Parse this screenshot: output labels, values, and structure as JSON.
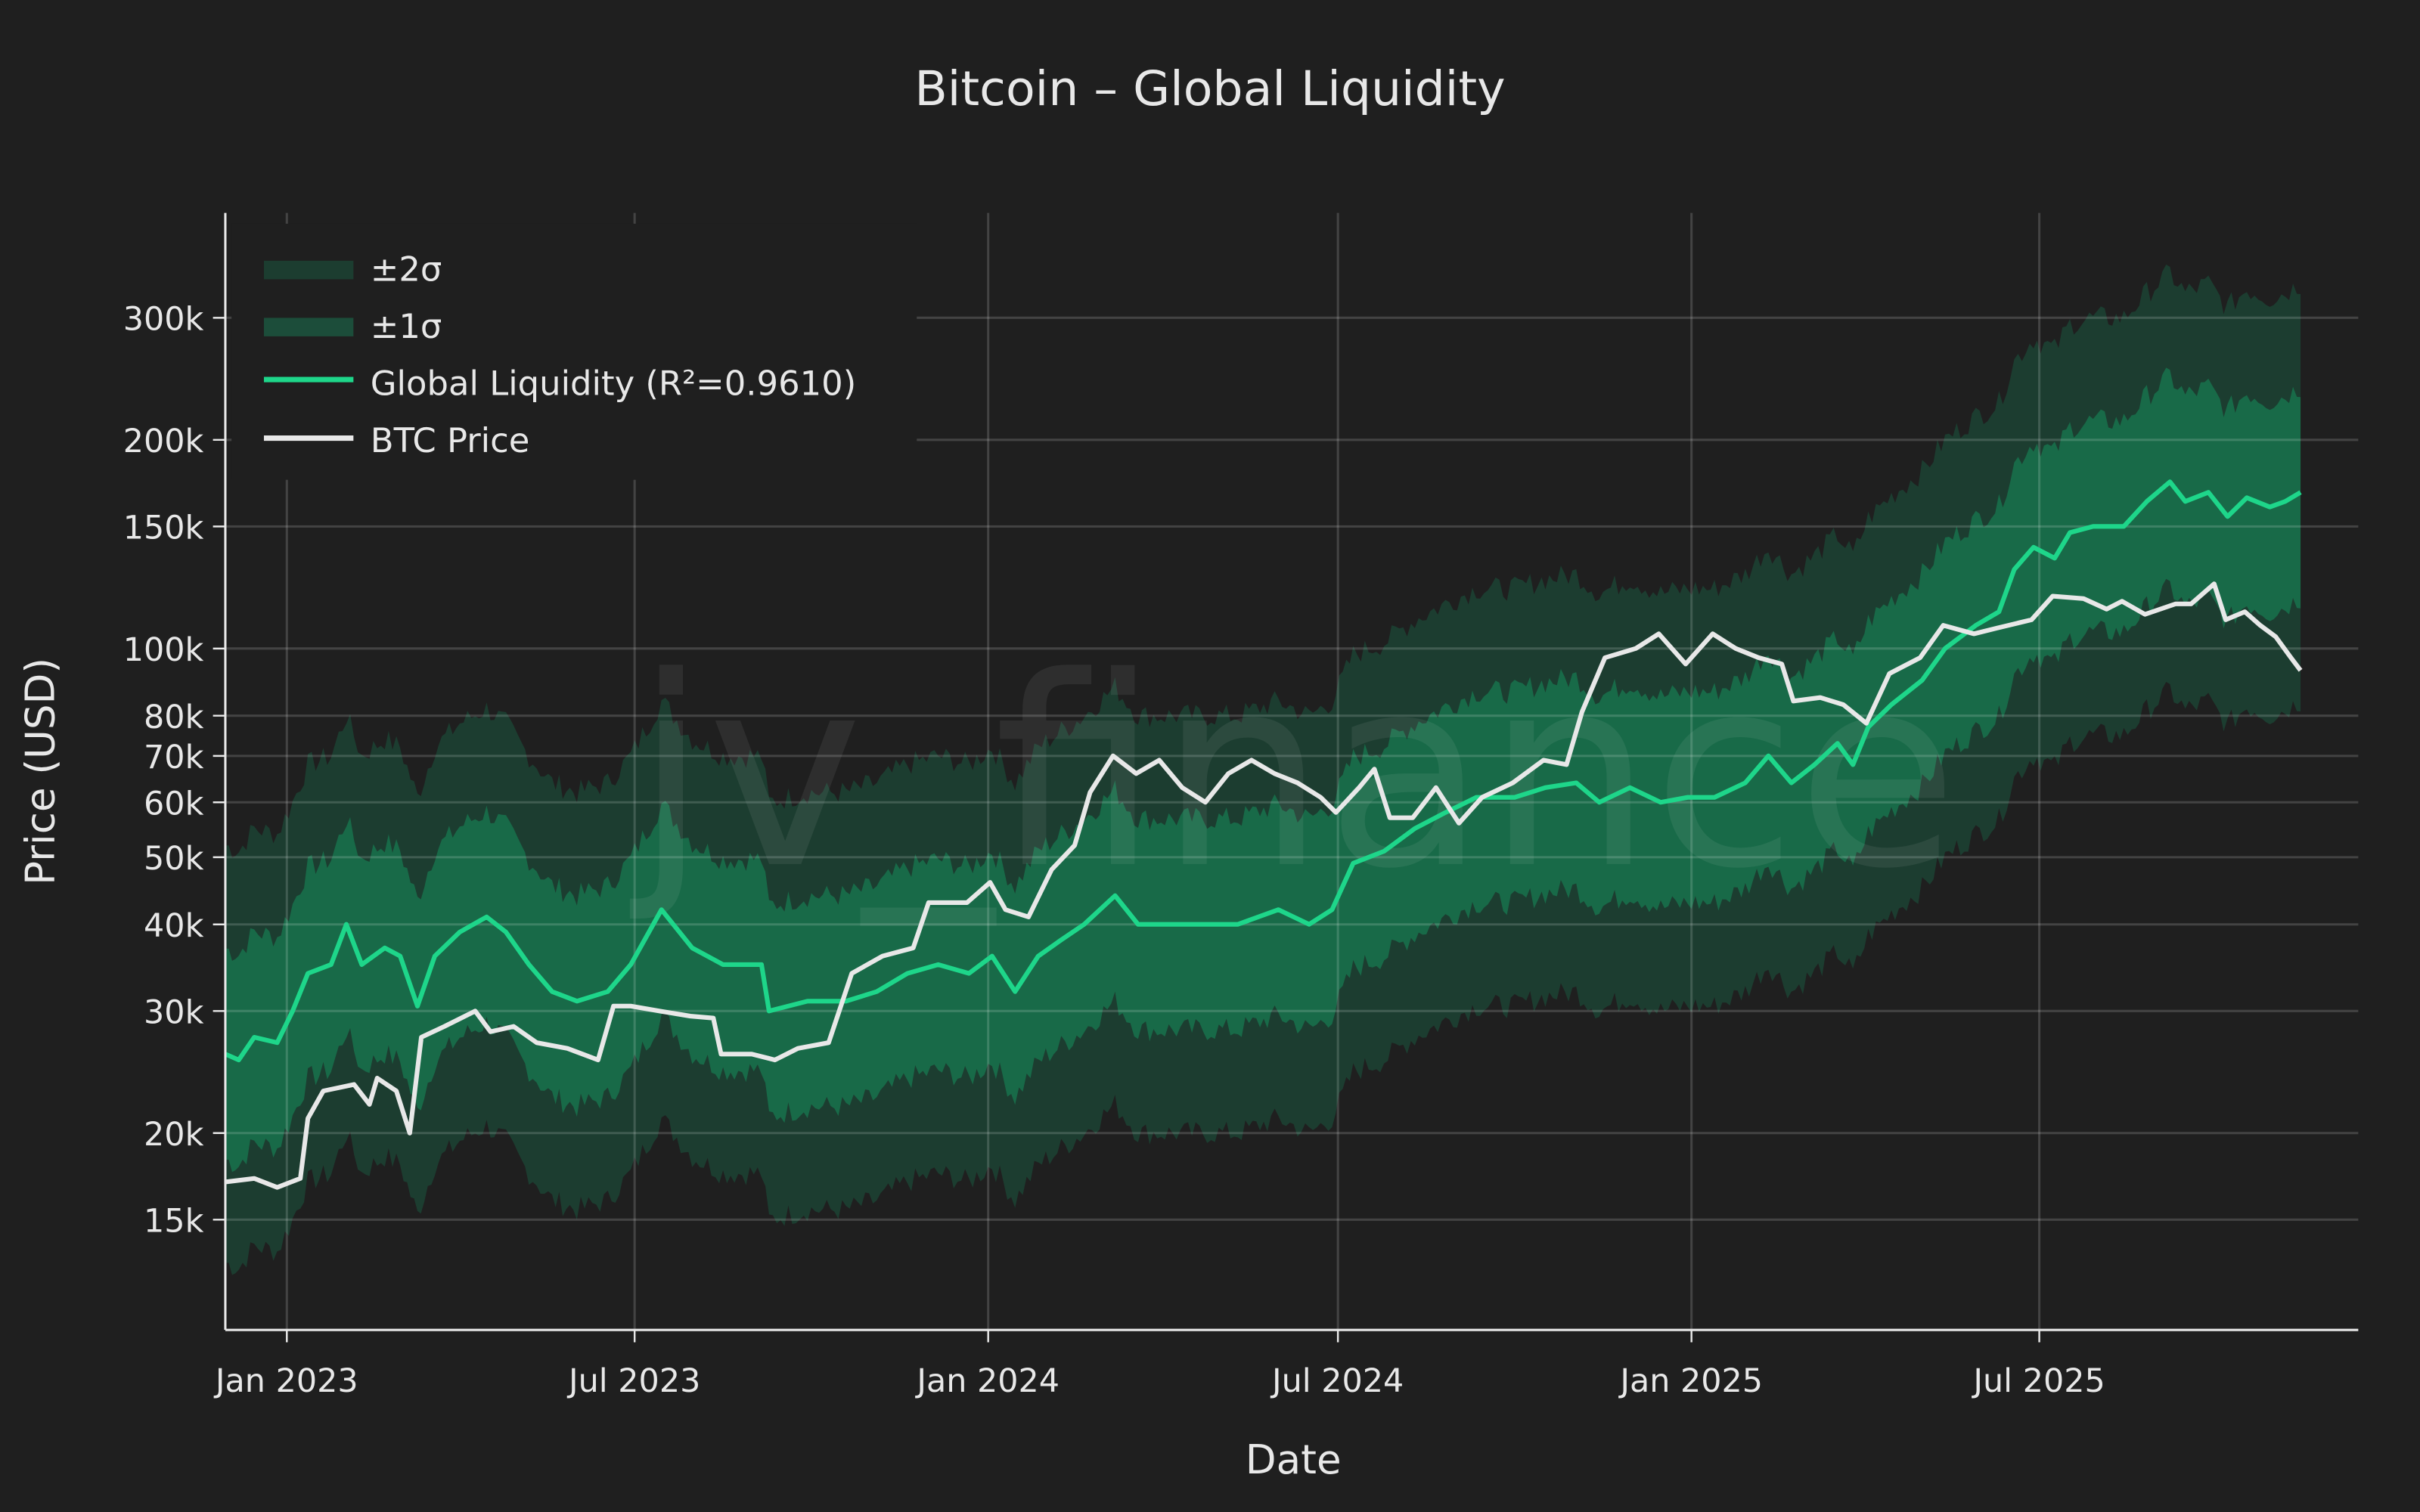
{
  "chart_data": {
    "type": "line",
    "title": "Bitcoin – Global Liquidity",
    "xlabel": "Date",
    "ylabel": "Price (USD)",
    "y_scale": "log",
    "ylim": [
      10400,
      425000
    ],
    "xlim": [
      "2022-11-30",
      "2025-12-14"
    ],
    "grid": true,
    "legend_placement": "top-left",
    "watermark": "jv_finance",
    "x_ticks": [
      {
        "date": "2023-01-01",
        "label": "Jan 2023"
      },
      {
        "date": "2023-07-01",
        "label": "Jul 2023"
      },
      {
        "date": "2024-01-01",
        "label": "Jan 2024"
      },
      {
        "date": "2024-07-01",
        "label": "Jul 2024"
      },
      {
        "date": "2025-01-01",
        "label": "Jan 2025"
      },
      {
        "date": "2025-07-01",
        "label": "Jul 2025"
      }
    ],
    "y_ticks": [
      {
        "value": 15000,
        "label": "15k"
      },
      {
        "value": 20000,
        "label": "20k"
      },
      {
        "value": 30000,
        "label": "30k"
      },
      {
        "value": 40000,
        "label": "40k"
      },
      {
        "value": 50000,
        "label": "50k"
      },
      {
        "value": 60000,
        "label": "60k"
      },
      {
        "value": 70000,
        "label": "70k"
      },
      {
        "value": 80000,
        "label": "80k"
      },
      {
        "value": 100000,
        "label": "100k"
      },
      {
        "value": 150000,
        "label": "150k"
      },
      {
        "value": 200000,
        "label": "200k"
      },
      {
        "value": 300000,
        "label": "300k"
      }
    ],
    "bands": [
      {
        "name": "±2σ",
        "multiplier": 2.0,
        "color": "#1c3d30"
      },
      {
        "name": "±1σ",
        "multiplier": 1.42,
        "color": "#186a48"
      }
    ],
    "series": [
      {
        "name": "Global Liquidity (R²=0.9610)",
        "color": "#1ed68a",
        "points": [
          [
            "2022-11-30",
            26000
          ],
          [
            "2022-12-07",
            25500
          ],
          [
            "2022-12-15",
            27500
          ],
          [
            "2022-12-27",
            27000
          ],
          [
            "2023-01-04",
            30000
          ],
          [
            "2023-01-12",
            34000
          ],
          [
            "2023-01-24",
            35000
          ],
          [
            "2023-02-01",
            40000
          ],
          [
            "2023-02-09",
            35000
          ],
          [
            "2023-02-21",
            37000
          ],
          [
            "2023-03-01",
            36000
          ],
          [
            "2023-03-10",
            30500
          ],
          [
            "2023-03-19",
            36000
          ],
          [
            "2023-04-01",
            39000
          ],
          [
            "2023-04-15",
            41000
          ],
          [
            "2023-04-25",
            39000
          ],
          [
            "2023-05-07",
            35000
          ],
          [
            "2023-05-19",
            32000
          ],
          [
            "2023-06-01",
            31000
          ],
          [
            "2023-06-17",
            32000
          ],
          [
            "2023-06-29",
            35000
          ],
          [
            "2023-07-15",
            42000
          ],
          [
            "2023-07-31",
            37000
          ],
          [
            "2023-08-16",
            35000
          ],
          [
            "2023-09-05",
            35000
          ],
          [
            "2023-09-09",
            30000
          ],
          [
            "2023-09-29",
            31000
          ],
          [
            "2023-10-19",
            31000
          ],
          [
            "2023-11-04",
            32000
          ],
          [
            "2023-11-20",
            34000
          ],
          [
            "2023-12-06",
            35000
          ],
          [
            "2023-12-22",
            34000
          ],
          [
            "2024-01-03",
            36000
          ],
          [
            "2024-01-15",
            32000
          ],
          [
            "2024-01-27",
            36000
          ],
          [
            "2024-02-08",
            38000
          ],
          [
            "2024-02-20",
            40000
          ],
          [
            "2024-03-07",
            44000
          ],
          [
            "2024-03-19",
            40000
          ],
          [
            "2024-04-04",
            40000
          ],
          [
            "2024-04-24",
            40000
          ],
          [
            "2024-05-10",
            40000
          ],
          [
            "2024-05-31",
            42000
          ],
          [
            "2024-06-16",
            40000
          ],
          [
            "2024-06-28",
            42000
          ],
          [
            "2024-07-09",
            49000
          ],
          [
            "2024-07-25",
            51000
          ],
          [
            "2024-08-10",
            55000
          ],
          [
            "2024-08-26",
            58000
          ],
          [
            "2024-09-11",
            61000
          ],
          [
            "2024-10-01",
            61000
          ],
          [
            "2024-10-17",
            63000
          ],
          [
            "2024-11-02",
            64000
          ],
          [
            "2024-11-14",
            60000
          ],
          [
            "2024-11-30",
            63000
          ],
          [
            "2024-12-16",
            60000
          ],
          [
            "2024-12-30",
            61000
          ],
          [
            "2025-01-13",
            61000
          ],
          [
            "2025-01-29",
            64000
          ],
          [
            "2025-02-10",
            70000
          ],
          [
            "2025-02-22",
            64000
          ],
          [
            "2025-03-06",
            68000
          ],
          [
            "2025-03-18",
            73000
          ],
          [
            "2025-03-26",
            68000
          ],
          [
            "2025-04-03",
            77000
          ],
          [
            "2025-04-15",
            83000
          ],
          [
            "2025-05-01",
            90000
          ],
          [
            "2025-05-13",
            100000
          ],
          [
            "2025-05-29",
            108000
          ],
          [
            "2025-06-10",
            113000
          ],
          [
            "2025-06-18",
            130000
          ],
          [
            "2025-06-28",
            140000
          ],
          [
            "2025-07-09",
            135000
          ],
          [
            "2025-07-17",
            147000
          ],
          [
            "2025-07-29",
            150000
          ],
          [
            "2025-08-14",
            150000
          ],
          [
            "2025-08-26",
            163000
          ],
          [
            "2025-09-07",
            174000
          ],
          [
            "2025-09-15",
            163000
          ],
          [
            "2025-09-27",
            168000
          ],
          [
            "2025-10-07",
            155000
          ],
          [
            "2025-10-17",
            165000
          ],
          [
            "2025-10-29",
            160000
          ],
          [
            "2025-11-06",
            163000
          ],
          [
            "2025-11-14",
            168000
          ]
        ]
      },
      {
        "name": "BTC Price",
        "color": "#e8e8e8",
        "points": [
          [
            "2022-11-30",
            17000
          ],
          [
            "2022-12-15",
            17200
          ],
          [
            "2022-12-27",
            16700
          ],
          [
            "2023-01-08",
            17200
          ],
          [
            "2023-01-12",
            21000
          ],
          [
            "2023-01-20",
            23000
          ],
          [
            "2023-02-05",
            23500
          ],
          [
            "2023-02-13",
            22000
          ],
          [
            "2023-02-17",
            24000
          ],
          [
            "2023-02-27",
            23000
          ],
          [
            "2023-03-06",
            20000
          ],
          [
            "2023-03-12",
            27500
          ],
          [
            "2023-03-24",
            28500
          ],
          [
            "2023-04-09",
            30000
          ],
          [
            "2023-04-17",
            28000
          ],
          [
            "2023-04-29",
            28500
          ],
          [
            "2023-05-11",
            27000
          ],
          [
            "2023-05-27",
            26500
          ],
          [
            "2023-06-12",
            25500
          ],
          [
            "2023-06-20",
            30500
          ],
          [
            "2023-06-29",
            30500
          ],
          [
            "2023-07-14",
            30000
          ],
          [
            "2023-07-30",
            29500
          ],
          [
            "2023-08-11",
            29300
          ],
          [
            "2023-08-15",
            26000
          ],
          [
            "2023-08-31",
            26000
          ],
          [
            "2023-09-12",
            25500
          ],
          [
            "2023-09-24",
            26500
          ],
          [
            "2023-10-10",
            27000
          ],
          [
            "2023-10-22",
            34000
          ],
          [
            "2023-11-07",
            36000
          ],
          [
            "2023-11-23",
            37000
          ],
          [
            "2023-12-01",
            43000
          ],
          [
            "2023-12-21",
            43000
          ],
          [
            "2024-01-02",
            46000
          ],
          [
            "2024-01-10",
            42000
          ],
          [
            "2024-01-22",
            41000
          ],
          [
            "2024-02-03",
            48000
          ],
          [
            "2024-02-15",
            52000
          ],
          [
            "2024-02-23",
            62000
          ],
          [
            "2024-03-06",
            70000
          ],
          [
            "2024-03-18",
            66000
          ],
          [
            "2024-03-30",
            69000
          ],
          [
            "2024-04-11",
            63000
          ],
          [
            "2024-04-23",
            60000
          ],
          [
            "2024-05-05",
            66000
          ],
          [
            "2024-05-17",
            69000
          ],
          [
            "2024-05-29",
            66000
          ],
          [
            "2024-06-10",
            64000
          ],
          [
            "2024-06-22",
            61000
          ],
          [
            "2024-06-30",
            58000
          ],
          [
            "2024-07-12",
            63000
          ],
          [
            "2024-07-20",
            67000
          ],
          [
            "2024-07-28",
            57000
          ],
          [
            "2024-08-09",
            57000
          ],
          [
            "2024-08-21",
            63000
          ],
          [
            "2024-09-02",
            56000
          ],
          [
            "2024-09-14",
            61000
          ],
          [
            "2024-09-30",
            64000
          ],
          [
            "2024-10-16",
            69000
          ],
          [
            "2024-10-28",
            68000
          ],
          [
            "2024-11-05",
            81000
          ],
          [
            "2024-11-17",
            97000
          ],
          [
            "2024-12-03",
            100000
          ],
          [
            "2024-12-15",
            105000
          ],
          [
            "2024-12-29",
            95000
          ],
          [
            "2025-01-12",
            105000
          ],
          [
            "2025-01-24",
            100000
          ],
          [
            "2025-02-05",
            97000
          ],
          [
            "2025-02-17",
            95000
          ],
          [
            "2025-02-23",
            84000
          ],
          [
            "2025-03-09",
            85000
          ],
          [
            "2025-03-21",
            83000
          ],
          [
            "2025-04-02",
            78000
          ],
          [
            "2025-04-14",
            92000
          ],
          [
            "2025-04-30",
            97000
          ],
          [
            "2025-05-12",
            108000
          ],
          [
            "2025-05-28",
            105000
          ],
          [
            "2025-06-09",
            107000
          ],
          [
            "2025-06-27",
            110000
          ],
          [
            "2025-07-08",
            119000
          ],
          [
            "2025-07-24",
            118000
          ],
          [
            "2025-08-05",
            114000
          ],
          [
            "2025-08-13",
            117000
          ],
          [
            "2025-08-25",
            112000
          ],
          [
            "2025-09-10",
            116000
          ],
          [
            "2025-09-18",
            116000
          ],
          [
            "2025-09-30",
            124000
          ],
          [
            "2025-10-06",
            110000
          ],
          [
            "2025-10-16",
            113000
          ],
          [
            "2025-10-24",
            108000
          ],
          [
            "2025-11-01",
            104000
          ],
          [
            "2025-11-09",
            97000
          ],
          [
            "2025-11-14",
            93000
          ]
        ]
      }
    ]
  }
}
